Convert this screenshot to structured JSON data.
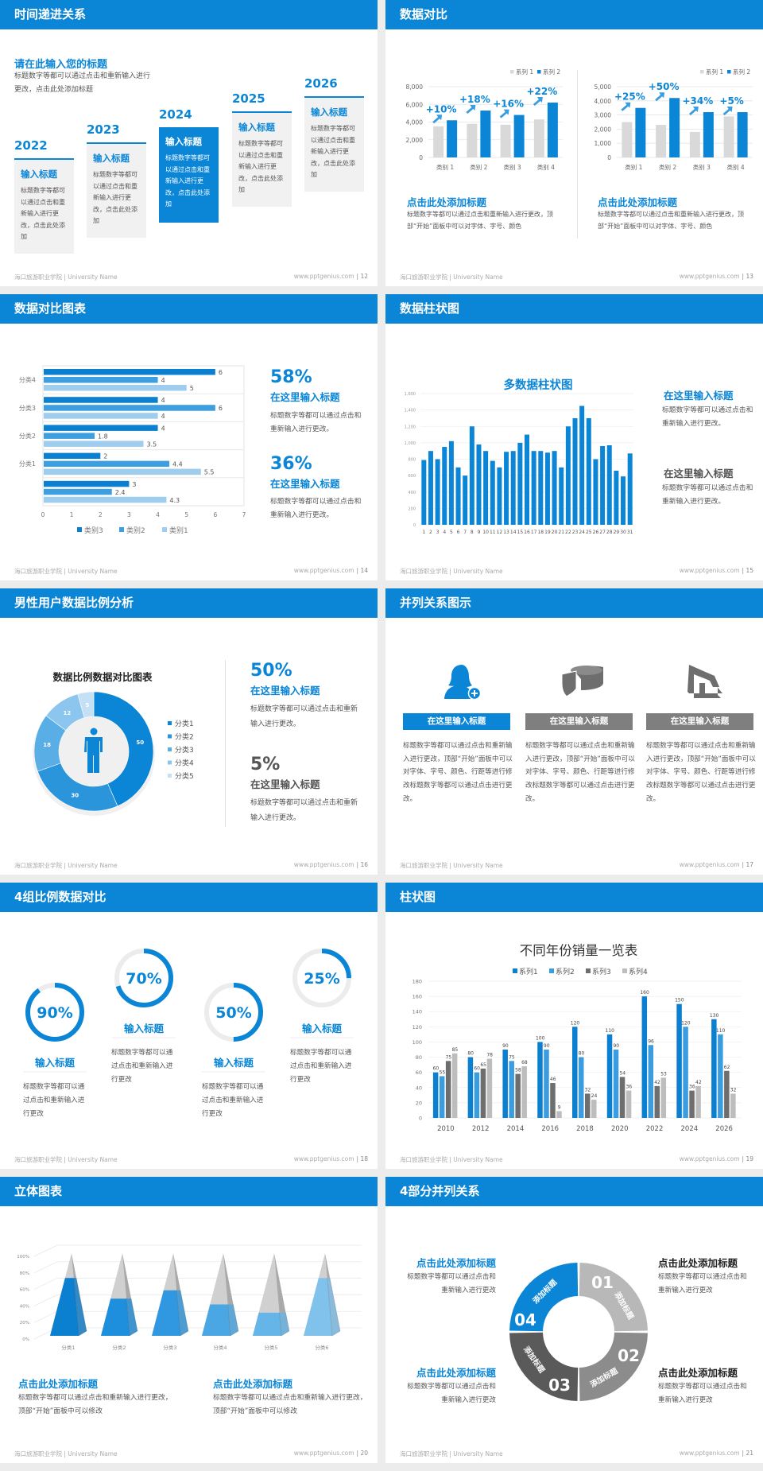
{
  "colors": {
    "brand": "#0b86d6",
    "gap": "#ececec",
    "light_gray": "#d9d9d9",
    "dark_gray": "#6e6e6e"
  },
  "footer": {
    "school": "海口旅游职业学院 | University Name",
    "site": "www.pptgenius.com"
  },
  "slides": [
    {
      "title": "时间递进关系",
      "page": "| 12",
      "heading": "请在此输入您的标题",
      "intro": "标题数字等都可以通过点击和重新输入进行更改，点击此处添加标题",
      "steps": [
        {
          "year": "2022",
          "title": "输入标题",
          "body": "标题数字等都可以通过点击和重新输入进行更改，点击此处添加"
        },
        {
          "year": "2023",
          "title": "输入标题",
          "body": "标题数字等都可以通过点击和重新输入进行更改，点击此处添加"
        },
        {
          "year": "2024",
          "title": "输入标题",
          "body": "标题数字等都可以通过点击和重新输入进行更改，点击此处添加"
        },
        {
          "year": "2025",
          "title": "输入标题",
          "body": "标题数字等都可以通过点击和重新输入进行更改，点击此处添加"
        },
        {
          "year": "2026",
          "title": "输入标题",
          "body": "标题数字等都可以通过点击和重新输入进行更改，点击此处添加"
        }
      ]
    },
    {
      "title": "数据对比",
      "page": "| 13",
      "blocks": [
        {
          "title": "点击此处添加标题",
          "body": "标题数字等都可以通过点击和重新输入进行更改，顶部“开始”面板中可以对字体、字号、颜色"
        },
        {
          "title": "点击此处添加标题",
          "body": "标题数字等都可以通过点击和重新输入进行更改，顶部“开始”面板中可以对字体、字号、颜色"
        }
      ]
    },
    {
      "title": "数据对比图表",
      "page": "| 14",
      "stats": [
        {
          "value": "58%",
          "title": "在这里输入标题",
          "body": "标题数字等都可以通过点击和重新输入进行更改。"
        },
        {
          "value": "36%",
          "title": "在这里输入标题",
          "body": "标题数字等都可以通过点击和重新输入进行更改。"
        }
      ]
    },
    {
      "title": "数据柱状图",
      "page": "| 15",
      "chart_title": "多数据柱状图",
      "blocks": [
        {
          "title": "在这里输入标题",
          "body": "标题数字等都可以通过点击和重新输入进行更改。"
        },
        {
          "title": "在这里输入标题",
          "body": "标题数字等都可以通过点击和重新输入进行更改。"
        }
      ]
    },
    {
      "title": "男性用户数据比例分析",
      "page": "| 16",
      "chart_title": "数据比例数据对比图表",
      "stats": [
        {
          "value": "50%",
          "title": "在这里输入标题",
          "body": "标题数字等都可以通过点击和重新输入进行更改。"
        },
        {
          "value": "5%",
          "title": "在这里输入标题",
          "body": "标题数字等都可以通过点击和重新输入进行更改。"
        }
      ]
    },
    {
      "title": "并列关系图示",
      "page": "| 17",
      "items": [
        {
          "icon": "user-add-icon",
          "label": "在这里输入标题",
          "body": "标题数字等都可以通过点击和重新输入进行更改，顶部“开始”面板中可以对字体、字号、颜色、行距等进行修改标题数字等都可以通过点击进行更改。"
        },
        {
          "icon": "pie-3d-icon",
          "label": "在这里输入标题",
          "body": "标题数字等都可以通过点击和重新输入进行更改，顶部“开始”面板中可以对字体、字号、颜色、行距等进行修改标题数字等都可以通过点击进行更改。"
        },
        {
          "icon": "store-icon",
          "label": "在这里输入标题",
          "body": "标题数字等都可以通过点击和重新输入进行更改，顶部“开始”面板中可以对字体、字号、颜色、行距等进行修改标题数字等都可以通过点击进行更改。"
        }
      ]
    },
    {
      "title": "4组比例数据对比",
      "page": "| 18",
      "items": [
        {
          "value": 90,
          "label": "90%",
          "title": "输入标题",
          "body": "标题数字等都可以通过点击和重新输入进行更改"
        },
        {
          "value": 70,
          "label": "70%",
          "title": "输入标题",
          "body": "标题数字等都可以通过点击和重新输入进行更改"
        },
        {
          "value": 50,
          "label": "50%",
          "title": "输入标题",
          "body": "标题数字等都可以通过点击和重新输入进行更改"
        },
        {
          "value": 25,
          "label": "25%",
          "title": "输入标题",
          "body": "标题数字等都可以通过点击和重新输入进行更改"
        }
      ]
    },
    {
      "title": "柱状图",
      "page": "| 19",
      "chart_title": "不同年份销量一览表"
    },
    {
      "title": "立体图表",
      "page": "| 20",
      "blocks": [
        {
          "title": "点击此处添加标题",
          "body": "标题数字等都可以通过点击和重新输入进行更改，顶部“开始”面板中可以修改"
        },
        {
          "title": "点击此处添加标题",
          "body": "标题数字等都可以通过点击和重新输入进行更改，顶部“开始”面板中可以修改"
        }
      ]
    },
    {
      "title": "4部分并列关系",
      "page": "| 21",
      "segments": [
        {
          "num": "01",
          "label": "添加标题"
        },
        {
          "num": "02",
          "label": "添加标题"
        },
        {
          "num": "03",
          "label": "添加标题"
        },
        {
          "num": "04",
          "label": "添加标题"
        }
      ],
      "blocks": [
        {
          "title": "点击此处添加标题",
          "body": "标题数字等都可以通过点击和重新输入进行更改"
        },
        {
          "title": "点击此处添加标题",
          "body": "标题数字等都可以通过点击和重新输入进行更改"
        },
        {
          "title": "点击此处添加标题",
          "body": "标题数字等都可以通过点击和重新输入进行更改"
        },
        {
          "title": "点击此处添加标题",
          "body": "标题数字等都可以通过点击和重新输入进行更改"
        }
      ]
    }
  ],
  "chart_data": [
    {
      "type": "bar",
      "categories": [
        "类别 1",
        "类别 2",
        "类别 3",
        "类别 4"
      ],
      "series": [
        {
          "name": "系列 1",
          "values": [
            3500,
            3800,
            3700,
            4300
          ],
          "color": "#d9d9d9"
        },
        {
          "name": "系列 2",
          "values": [
            4200,
            5300,
            4800,
            6200
          ],
          "color": "#0b86d6"
        }
      ],
      "ylim": [
        0,
        8000
      ],
      "ytick": 2000,
      "annotations": [
        "+10%",
        "+18%",
        "+16%",
        "+22%"
      ],
      "legend": "top-right",
      "grid": true
    },
    {
      "type": "bar",
      "categories": [
        "类别 1",
        "类别 2",
        "类别 3",
        "类别 4"
      ],
      "series": [
        {
          "name": "系列 1",
          "values": [
            2500,
            2300,
            1800,
            2900
          ],
          "color": "#d9d9d9"
        },
        {
          "name": "系列 2",
          "values": [
            3500,
            4200,
            3200,
            3200
          ],
          "color": "#0b86d6"
        }
      ],
      "ylim": [
        0,
        5000
      ],
      "ytick": 1000,
      "annotations": [
        "+25%",
        "+50%",
        "+34%",
        "+5%"
      ],
      "legend": "top-right",
      "grid": true
    },
    {
      "type": "bar",
      "orientation": "horizontal",
      "categories": [
        "分类4",
        "分类3",
        "分类2",
        "分类1",
        ""
      ],
      "series": [
        {
          "name": "类别3",
          "values": [
            6,
            4,
            4,
            2,
            3
          ],
          "color": "#0b7fd0"
        },
        {
          "name": "类别2",
          "values": [
            4,
            6,
            1.8,
            4.4,
            2.4
          ],
          "color": "#3d9fe0"
        },
        {
          "name": "类别1",
          "values": [
            5,
            4,
            3.5,
            5.5,
            4.3
          ],
          "color": "#9fcdee"
        }
      ],
      "xlim": [
        0,
        7
      ],
      "xtick": 1,
      "legend": "bottom",
      "grid": true
    },
    {
      "type": "bar",
      "title": "多数据柱状图",
      "categories": [
        "1",
        "2",
        "3",
        "4",
        "5",
        "6",
        "7",
        "8",
        "9",
        "10",
        "11",
        "12",
        "13",
        "14",
        "15",
        "16",
        "17",
        "18",
        "19",
        "20",
        "21",
        "22",
        "23",
        "24",
        "25",
        "26",
        "27",
        "28",
        "29",
        "30",
        "31"
      ],
      "values": [
        790,
        900,
        800,
        950,
        1020,
        700,
        600,
        1200,
        980,
        900,
        780,
        700,
        890,
        900,
        1000,
        1100,
        900,
        900,
        880,
        900,
        700,
        1200,
        1300,
        1450,
        1300,
        800,
        960,
        970,
        660,
        590,
        870
      ],
      "color": "#0b86d6",
      "ylim": [
        0,
        1600
      ],
      "ytick": 200,
      "grid": true
    },
    {
      "type": "pie",
      "variant": "donut",
      "title": "数据比例数据对比图表",
      "categories": [
        "分类1",
        "分类2",
        "分类3",
        "分类4",
        "分类5"
      ],
      "values": [
        50,
        30,
        18,
        12,
        5
      ],
      "colors": [
        "#0b86d6",
        "#2b95dc",
        "#5aaee6",
        "#8cc6ee",
        "#c4e0f5"
      ],
      "legend": "right"
    },
    {
      "type": "bar",
      "title": "不同年份销量一览表",
      "categories": [
        "2010",
        "2012",
        "2014",
        "2016",
        "2018",
        "2020",
        "2022",
        "2024",
        "2026"
      ],
      "series": [
        {
          "name": "系列1",
          "values": [
            60,
            80,
            90,
            100,
            120,
            110,
            160,
            150,
            130
          ],
          "color": "#0b7fd0"
        },
        {
          "name": "系列2",
          "values": [
            55,
            60,
            75,
            90,
            80,
            90,
            96,
            120,
            110
          ],
          "color": "#3a9de0"
        },
        {
          "name": "系列3",
          "values": [
            75,
            65,
            58,
            46,
            32,
            54,
            42,
            36,
            62
          ],
          "color": "#6e6e6e"
        },
        {
          "name": "系列4",
          "values": [
            85,
            78,
            68,
            9,
            24,
            36,
            53,
            42,
            32
          ],
          "color": "#bdbdbd"
        }
      ],
      "ylim": [
        0,
        180
      ],
      "ytick": 20,
      "legend": "top",
      "grid": true
    },
    {
      "type": "bar",
      "variant": "3d-pyramid",
      "categories": [
        "分类1",
        "分类2",
        "分类3",
        "分类4",
        "分类5",
        "分类6"
      ],
      "values": [
        0.7,
        0.45,
        0.55,
        0.38,
        0.28,
        0.7
      ],
      "ylim": [
        0,
        1
      ],
      "ytick_labels": [
        "0%",
        "20%",
        "40%",
        "60%",
        "80%",
        "100%"
      ],
      "colors": [
        "#0b7fd0",
        "#1e8fdc",
        "#2f98e0",
        "#4aa7e4",
        "#65b5e8",
        "#80c2ec"
      ],
      "grid": true
    }
  ]
}
